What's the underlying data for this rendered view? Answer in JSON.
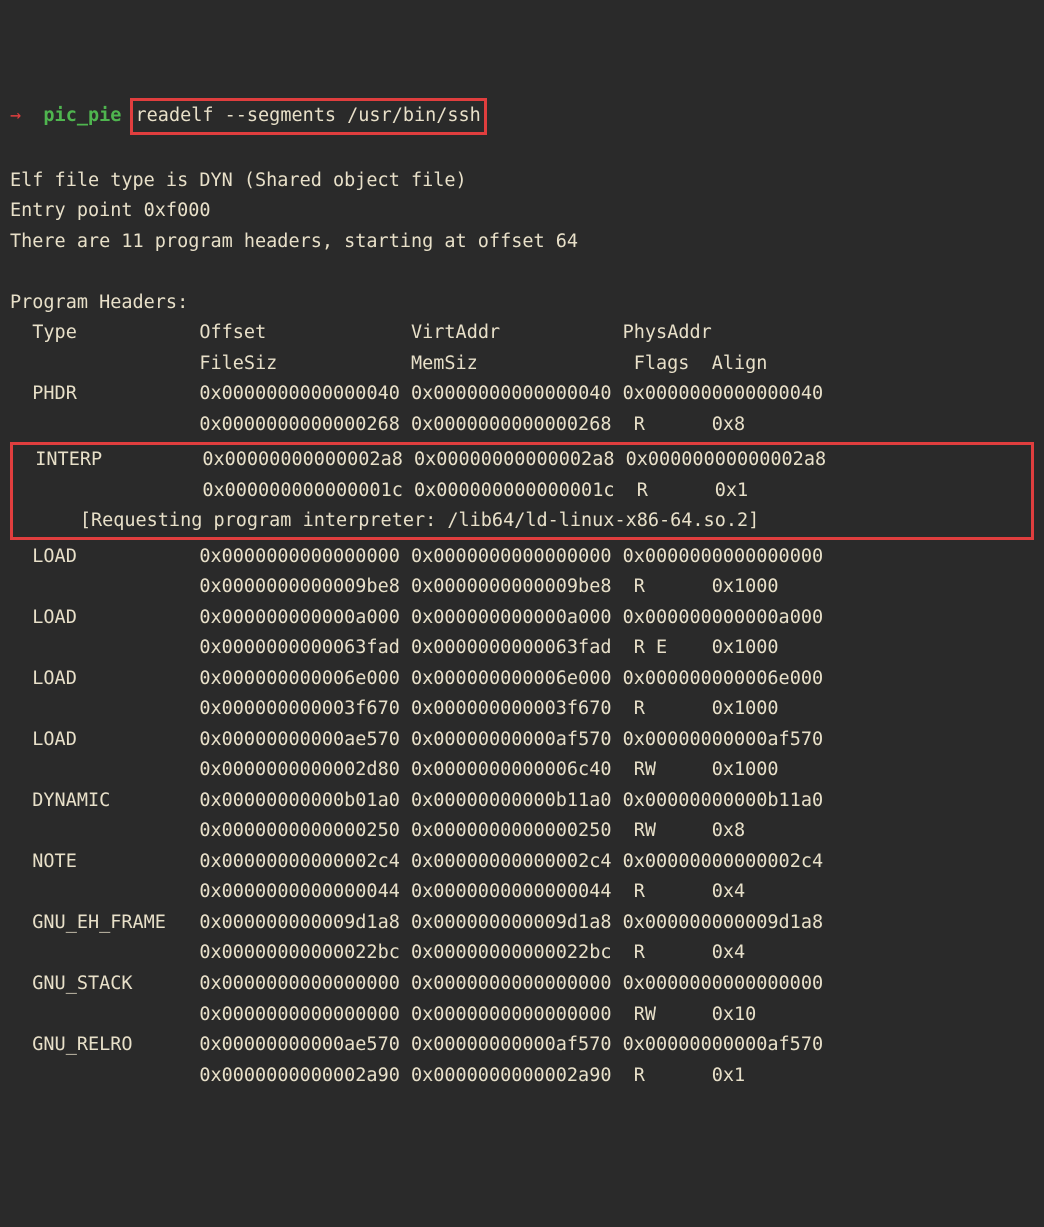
{
  "colors": {
    "bg": "#2a2a2a",
    "text": "#e8e0c9",
    "arrow": "#e03e3e",
    "dir": "#4fb54f",
    "highlight_border": "#e03e3e"
  },
  "prompt": {
    "arrow": "→",
    "dir": "pic_pie",
    "command": "readelf --segments /usr/bin/ssh"
  },
  "preamble": {
    "l1": "Elf file type is DYN (Shared object file)",
    "l2": "Entry point 0xf000",
    "l3": "There are 11 program headers, starting at offset 64"
  },
  "headers_title": "Program Headers:",
  "col_hdr": {
    "type": "Type",
    "offset": "Offset",
    "virt": "VirtAddr",
    "phys": "PhysAddr",
    "filesz": "FileSiz",
    "memsz": "MemSiz",
    "flags": "Flags",
    "align": "Align"
  },
  "rows": {
    "phdr": {
      "t": "PHDR",
      "off": "0x0000000000000040",
      "va": "0x0000000000000040",
      "pa": "0x0000000000000040",
      "fs": "0x0000000000000268",
      "ms": "0x0000000000000268",
      "fl": "R",
      "al": "0x8"
    },
    "interp": {
      "t": "INTERP",
      "off": "0x00000000000002a8",
      "va": "0x00000000000002a8",
      "pa": "0x00000000000002a8",
      "fs": "0x000000000000001c",
      "ms": "0x000000000000001c",
      "fl": "R",
      "al": "0x1",
      "note": "[Requesting program interpreter: /lib64/ld-linux-x86-64.so.2]"
    },
    "load1": {
      "t": "LOAD",
      "off": "0x0000000000000000",
      "va": "0x0000000000000000",
      "pa": "0x0000000000000000",
      "fs": "0x0000000000009be8",
      "ms": "0x0000000000009be8",
      "fl": "R",
      "al": "0x1000"
    },
    "load2": {
      "t": "LOAD",
      "off": "0x000000000000a000",
      "va": "0x000000000000a000",
      "pa": "0x000000000000a000",
      "fs": "0x0000000000063fad",
      "ms": "0x0000000000063fad",
      "fl": "R E",
      "al": "0x1000"
    },
    "load3": {
      "t": "LOAD",
      "off": "0x000000000006e000",
      "va": "0x000000000006e000",
      "pa": "0x000000000006e000",
      "fs": "0x000000000003f670",
      "ms": "0x000000000003f670",
      "fl": "R",
      "al": "0x1000"
    },
    "load4": {
      "t": "LOAD",
      "off": "0x00000000000ae570",
      "va": "0x00000000000af570",
      "pa": "0x00000000000af570",
      "fs": "0x0000000000002d80",
      "ms": "0x0000000000006c40",
      "fl": "RW",
      "al": "0x1000"
    },
    "dyn": {
      "t": "DYNAMIC",
      "off": "0x00000000000b01a0",
      "va": "0x00000000000b11a0",
      "pa": "0x00000000000b11a0",
      "fs": "0x0000000000000250",
      "ms": "0x0000000000000250",
      "fl": "RW",
      "al": "0x8"
    },
    "note": {
      "t": "NOTE",
      "off": "0x00000000000002c4",
      "va": "0x00000000000002c4",
      "pa": "0x00000000000002c4",
      "fs": "0x0000000000000044",
      "ms": "0x0000000000000044",
      "fl": "R",
      "al": "0x4"
    },
    "eh": {
      "t": "GNU_EH_FRAME",
      "off": "0x000000000009d1a8",
      "va": "0x000000000009d1a8",
      "pa": "0x000000000009d1a8",
      "fs": "0x00000000000022bc",
      "ms": "0x00000000000022bc",
      "fl": "R",
      "al": "0x4"
    },
    "stack": {
      "t": "GNU_STACK",
      "off": "0x0000000000000000",
      "va": "0x0000000000000000",
      "pa": "0x0000000000000000",
      "fs": "0x0000000000000000",
      "ms": "0x0000000000000000",
      "fl": "RW",
      "al": "0x10"
    },
    "relro": {
      "t": "GNU_RELRO",
      "off": "0x00000000000ae570",
      "va": "0x00000000000af570",
      "pa": "0x00000000000af570",
      "fs": "0x0000000000002a90",
      "ms": "0x0000000000002a90",
      "fl": "R",
      "al": "0x1"
    }
  },
  "layout": {
    "col_type_w": 14,
    "col_val_w": 20,
    "col_flag_w": 7,
    "indent1": 2,
    "indent2": 18,
    "note_indent": 6
  }
}
